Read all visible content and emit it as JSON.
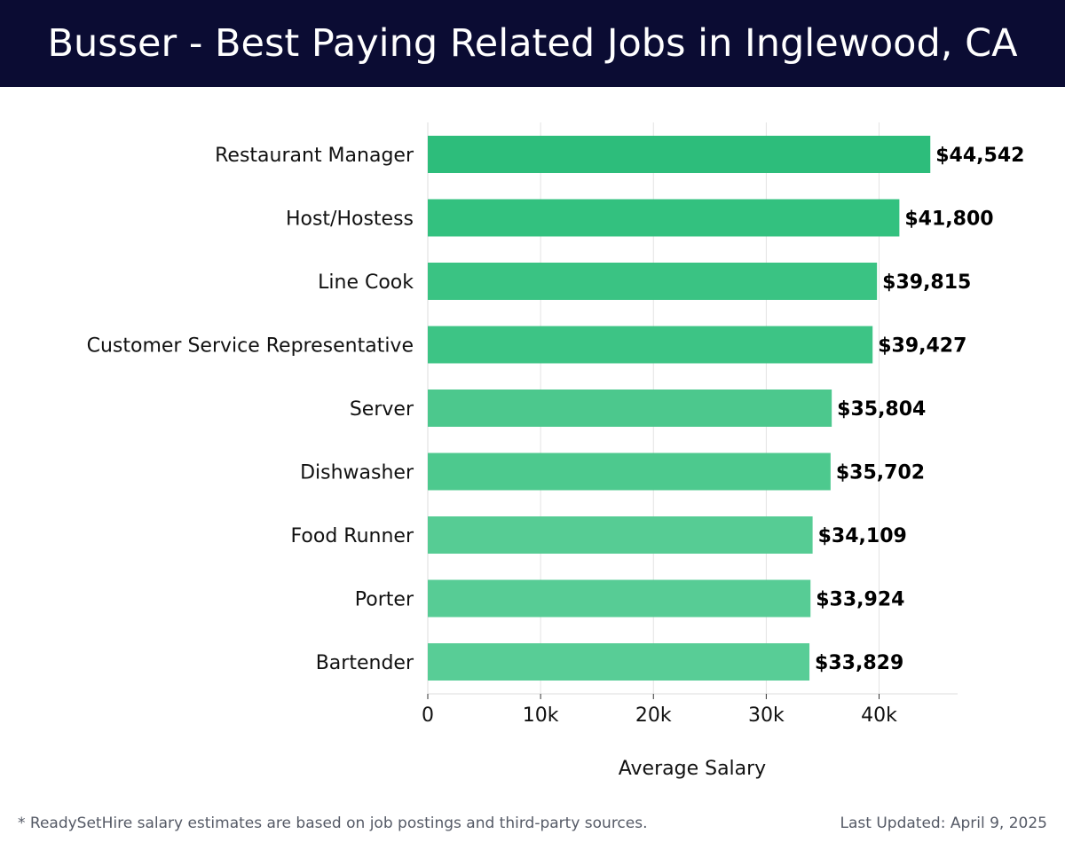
{
  "header": {
    "title": "Busser - Best Paying Related Jobs in Inglewood, CA"
  },
  "footer": {
    "note": "* ReadySetHire salary estimates are based on job postings and third-party sources.",
    "updated": "Last Updated: April 9, 2025"
  },
  "chart_data": {
    "type": "bar",
    "orientation": "horizontal",
    "title": "Busser - Best Paying Related Jobs in Inglewood, CA",
    "xlabel": "Average Salary",
    "ylabel": "",
    "xlim": [
      0,
      47000
    ],
    "x_ticks": [
      0,
      10000,
      20000,
      30000,
      40000
    ],
    "x_tick_labels": [
      "0",
      "10k",
      "20k",
      "30k",
      "40k"
    ],
    "grid": true,
    "categories": [
      "Restaurant Manager",
      "Host/Hostess",
      "Line Cook",
      "Customer Service Representative",
      "Server",
      "Dishwasher",
      "Food Runner",
      "Porter",
      "Bartender"
    ],
    "values": [
      44542,
      41800,
      39815,
      39427,
      35804,
      35702,
      34109,
      33924,
      33829
    ],
    "value_labels": [
      "$44,542",
      "$41,800",
      "$39,815",
      "$39,427",
      "$35,804",
      "$35,702",
      "$34,109",
      "$33,924",
      "$33,829"
    ],
    "bar_colors": [
      "#2dbd7b",
      "#33c17f",
      "#3ac383",
      "#3dc485",
      "#4cc88d",
      "#4dc98e",
      "#56cc94",
      "#57cc95",
      "#58cd96"
    ]
  }
}
